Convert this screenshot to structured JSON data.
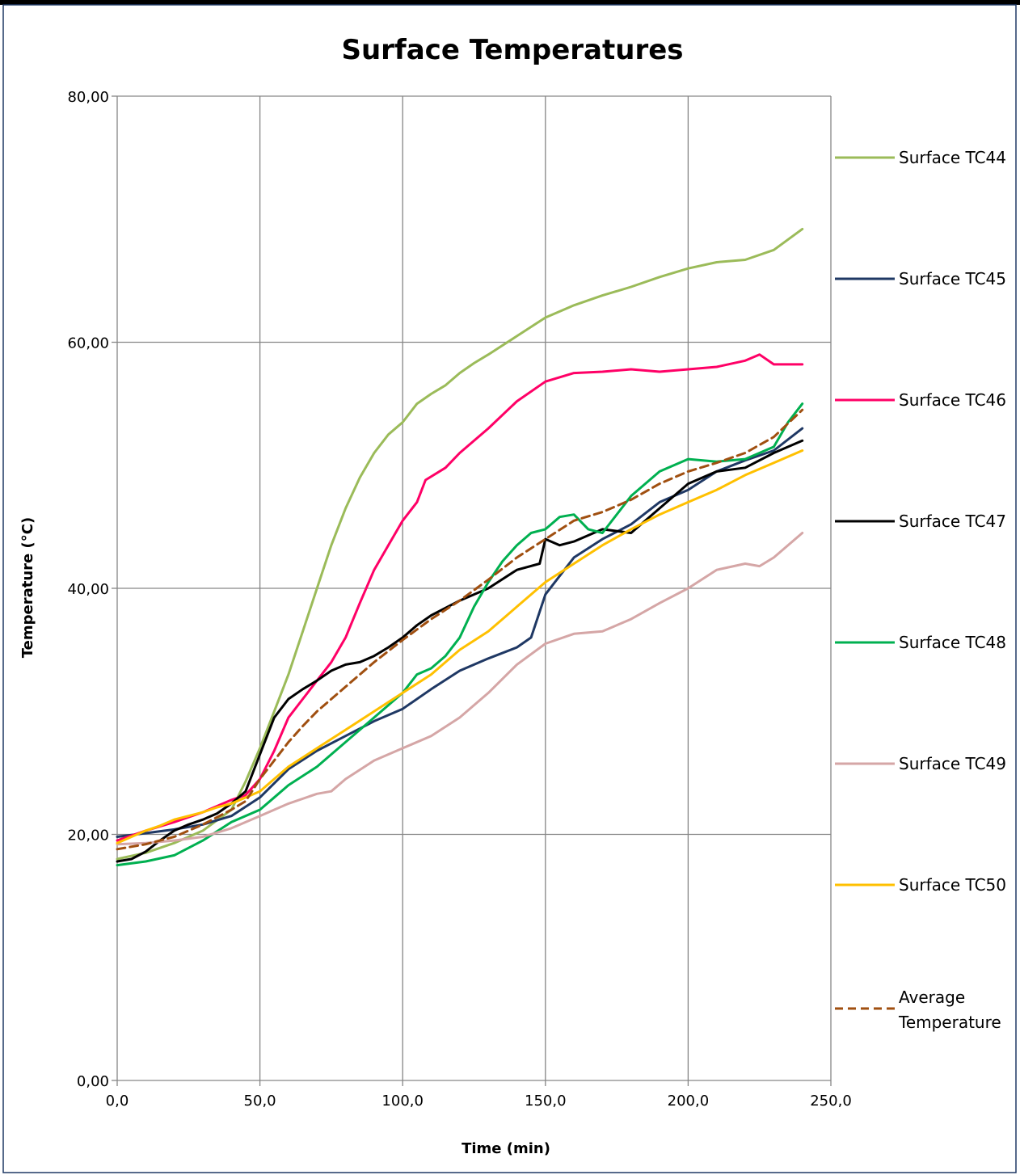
{
  "chart_data": {
    "type": "line",
    "title": "Surface Temperatures",
    "xlabel": "Time (min)",
    "ylabel": "Temperature (°C)",
    "xlim": [
      0,
      250
    ],
    "ylim": [
      0,
      80
    ],
    "x_ticks": [
      0,
      50,
      100,
      150,
      200,
      250
    ],
    "y_ticks": [
      0,
      20,
      40,
      60,
      80
    ],
    "x_tick_labels": [
      "0,0",
      "50,0",
      "100,0",
      "150,0",
      "200,0",
      "250,0"
    ],
    "y_tick_labels": [
      "0,00",
      "20,00",
      "40,00",
      "60,00",
      "80,00"
    ],
    "grid": true,
    "legend_position": "right",
    "series": [
      {
        "name": "Surface TC44",
        "color": "#9bbb59",
        "dashed": false,
        "x": [
          0,
          10,
          20,
          30,
          40,
          45,
          50,
          55,
          60,
          65,
          70,
          75,
          80,
          85,
          90,
          95,
          100,
          105,
          110,
          115,
          120,
          125,
          130,
          140,
          150,
          160,
          170,
          180,
          190,
          200,
          210,
          220,
          230,
          240
        ],
        "y": [
          18.0,
          18.5,
          19.3,
          20.3,
          22.0,
          24.3,
          27.0,
          30.0,
          33.0,
          36.5,
          40.0,
          43.5,
          46.5,
          49.0,
          51.0,
          52.5,
          53.5,
          55.0,
          55.8,
          56.5,
          57.5,
          58.3,
          59.0,
          60.5,
          62.0,
          63.0,
          63.8,
          64.5,
          65.3,
          66.0,
          66.5,
          66.7,
          67.5,
          69.2
        ]
      },
      {
        "name": "Surface TC45",
        "color": "#1f3864",
        "dashed": false,
        "x": [
          0,
          10,
          20,
          30,
          40,
          50,
          60,
          70,
          80,
          90,
          100,
          110,
          120,
          130,
          140,
          145,
          150,
          160,
          170,
          180,
          190,
          200,
          210,
          220,
          230,
          240
        ],
        "y": [
          19.8,
          20.1,
          20.4,
          20.8,
          21.5,
          23.0,
          25.3,
          26.8,
          28.0,
          29.2,
          30.2,
          31.8,
          33.3,
          34.3,
          35.2,
          36.0,
          39.5,
          42.5,
          44.0,
          45.2,
          47.0,
          48.0,
          49.5,
          50.4,
          51.2,
          53.0
        ]
      },
      {
        "name": "Surface TC46",
        "color": "#ff0066",
        "dashed": false,
        "x": [
          0,
          10,
          20,
          30,
          40,
          45,
          50,
          55,
          60,
          65,
          70,
          75,
          80,
          85,
          90,
          95,
          100,
          105,
          108,
          115,
          120,
          130,
          140,
          150,
          160,
          170,
          180,
          190,
          200,
          210,
          220,
          225,
          230,
          240
        ],
        "y": [
          19.5,
          20.3,
          21.0,
          21.8,
          22.8,
          23.2,
          24.5,
          26.8,
          29.5,
          31.0,
          32.5,
          34.0,
          36.0,
          38.8,
          41.5,
          43.5,
          45.5,
          47.0,
          48.8,
          49.8,
          51.0,
          53.0,
          55.2,
          56.8,
          57.5,
          57.6,
          57.8,
          57.6,
          57.8,
          58.0,
          58.5,
          59.0,
          58.2,
          58.2
        ]
      },
      {
        "name": "Surface TC47",
        "color": "#000000",
        "dashed": false,
        "x": [
          0,
          5,
          10,
          15,
          20,
          25,
          30,
          35,
          40,
          45,
          50,
          55,
          60,
          65,
          70,
          75,
          80,
          85,
          90,
          95,
          100,
          105,
          110,
          120,
          130,
          140,
          148,
          150,
          155,
          160,
          170,
          180,
          190,
          200,
          210,
          220,
          230,
          240
        ],
        "y": [
          17.8,
          18.0,
          18.6,
          19.5,
          20.3,
          20.8,
          21.2,
          21.7,
          22.5,
          23.5,
          26.5,
          29.5,
          31.0,
          31.8,
          32.5,
          33.3,
          33.8,
          34.0,
          34.5,
          35.2,
          36.0,
          37.0,
          37.8,
          39.0,
          40.0,
          41.5,
          42.0,
          44.0,
          43.5,
          43.8,
          44.8,
          44.5,
          46.5,
          48.5,
          49.5,
          49.8,
          51.0,
          52.0
        ]
      },
      {
        "name": "Surface TC48",
        "color": "#00b050",
        "dashed": false,
        "x": [
          0,
          10,
          20,
          30,
          40,
          50,
          55,
          60,
          70,
          80,
          90,
          95,
          100,
          105,
          110,
          115,
          120,
          125,
          130,
          135,
          140,
          145,
          150,
          155,
          160,
          165,
          170,
          180,
          190,
          200,
          210,
          220,
          230,
          235,
          240
        ],
        "y": [
          17.5,
          17.8,
          18.3,
          19.5,
          21.0,
          22.0,
          23.0,
          24.0,
          25.5,
          27.5,
          29.5,
          30.5,
          31.5,
          33.0,
          33.5,
          34.5,
          36.0,
          38.5,
          40.5,
          42.2,
          43.5,
          44.5,
          44.8,
          45.8,
          46.0,
          44.8,
          44.5,
          47.5,
          49.5,
          50.5,
          50.3,
          50.5,
          51.5,
          53.5,
          55.0
        ]
      },
      {
        "name": "Surface TC49",
        "color": "#d5a6a6",
        "dashed": false,
        "x": [
          0,
          10,
          20,
          30,
          40,
          50,
          60,
          70,
          75,
          80,
          90,
          100,
          110,
          120,
          130,
          140,
          150,
          160,
          170,
          180,
          190,
          200,
          210,
          220,
          225,
          230,
          240
        ],
        "y": [
          19.2,
          19.3,
          19.5,
          19.8,
          20.5,
          21.5,
          22.5,
          23.3,
          23.5,
          24.5,
          26.0,
          27.0,
          28.0,
          29.5,
          31.5,
          33.8,
          35.5,
          36.3,
          36.5,
          37.5,
          38.8,
          40.0,
          41.5,
          42.0,
          41.8,
          42.5,
          44.5
        ]
      },
      {
        "name": "Surface TC50",
        "color": "#ffc000",
        "dashed": false,
        "x": [
          0,
          5,
          10,
          15,
          20,
          25,
          30,
          35,
          40,
          50,
          60,
          70,
          80,
          90,
          100,
          110,
          120,
          130,
          140,
          150,
          160,
          170,
          180,
          190,
          200,
          210,
          220,
          230,
          240
        ],
        "y": [
          19.3,
          19.8,
          20.3,
          20.7,
          21.2,
          21.5,
          21.8,
          22.2,
          22.5,
          23.5,
          25.5,
          27.0,
          28.5,
          30.0,
          31.5,
          33.0,
          35.0,
          36.5,
          38.5,
          40.5,
          42.0,
          43.5,
          44.8,
          46.0,
          47.0,
          48.0,
          49.2,
          50.2,
          51.2
        ]
      },
      {
        "name": "Average Temperature",
        "color": "#a04f10",
        "dashed": true,
        "x": [
          0,
          10,
          20,
          30,
          40,
          45,
          50,
          55,
          60,
          65,
          70,
          80,
          90,
          100,
          110,
          120,
          130,
          140,
          150,
          160,
          170,
          180,
          190,
          200,
          210,
          220,
          230,
          240
        ],
        "y": [
          18.8,
          19.2,
          19.8,
          20.8,
          22.0,
          22.7,
          24.5,
          26.0,
          27.5,
          28.8,
          30.0,
          32.0,
          34.0,
          35.8,
          37.5,
          39.0,
          40.7,
          42.5,
          44.0,
          45.5,
          46.2,
          47.2,
          48.5,
          49.5,
          50.2,
          51.0,
          52.3,
          54.5
        ]
      }
    ]
  }
}
